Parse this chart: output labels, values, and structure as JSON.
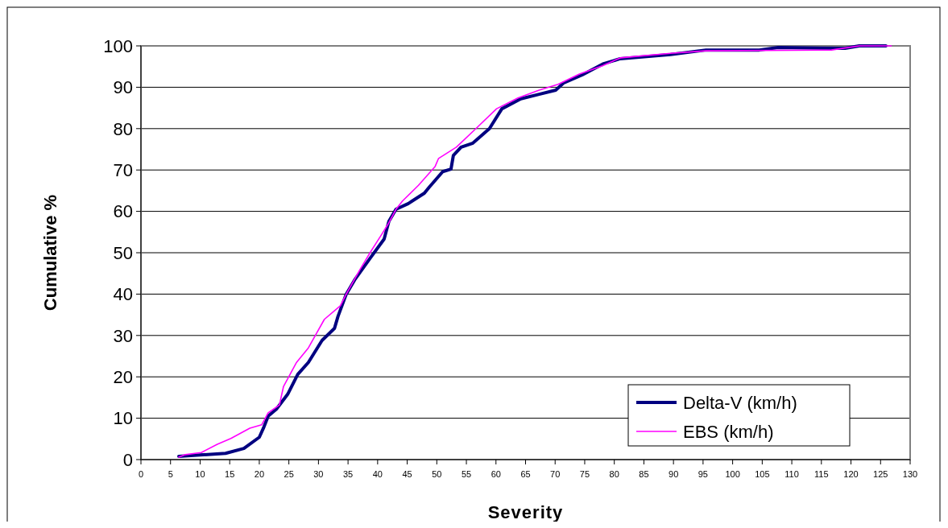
{
  "chart_data": {
    "type": "line",
    "xlabel": "Severity",
    "ylabel": "Cumulative %",
    "xlim": [
      0,
      130
    ],
    "xticks": [
      0,
      5,
      10,
      15,
      20,
      25,
      30,
      35,
      40,
      45,
      50,
      55,
      60,
      65,
      70,
      75,
      80,
      85,
      90,
      95,
      100,
      105,
      110,
      115,
      120,
      125,
      130
    ],
    "ylim": [
      0,
      100
    ],
    "yticks": [
      0,
      10,
      20,
      30,
      40,
      50,
      60,
      70,
      80,
      90,
      100
    ],
    "grid": "y",
    "legend": "bottom right",
    "marker": "none",
    "line_style": "solid",
    "series": [
      {
        "name": "Delta-V (km/h)",
        "color": "#000080",
        "x": [
          6.4,
          14.3,
          17.4,
          20,
          20.7,
          21.5,
          22.9,
          24.8,
          26.5,
          28.3,
          30.6,
          32.7,
          33.3,
          34.7,
          36.1,
          38.8,
          41.1,
          41.9,
          43.1,
          45.2,
          47.9,
          48.7,
          51,
          52.4,
          52.8,
          54.1,
          56.1,
          58.9,
          61,
          64.2,
          67.3,
          70.1,
          71.4,
          74.6,
          78.2,
          81,
          89.5,
          95.5,
          104.5,
          107.7,
          119,
          121.4,
          125.9
        ],
        "values": [
          0.8,
          1.5,
          2.7,
          5.4,
          7.6,
          10.5,
          12.2,
          15.8,
          20.6,
          23.5,
          28.8,
          31.7,
          34.6,
          40,
          43.4,
          48.8,
          53.3,
          57.6,
          60.5,
          61.9,
          64.4,
          65.8,
          69.6,
          70.2,
          73.5,
          75.5,
          76.5,
          80,
          84.8,
          87.2,
          88.3,
          89.3,
          91,
          93,
          95.7,
          96.9,
          97.9,
          99,
          99,
          99.6,
          99.4,
          100,
          100
        ]
      },
      {
        "name": "EBS (km/h)",
        "color": "#ff00ff",
        "x": [
          6.4,
          7.5,
          10.2,
          12.9,
          15.2,
          18.4,
          20.4,
          21.5,
          23.4,
          24.1,
          26.3,
          28.3,
          31,
          33.7,
          34.7,
          37,
          38.8,
          40.5,
          41.8,
          43.1,
          44.2,
          46.9,
          49.7,
          50.3,
          53.3,
          56.9,
          60.1,
          63.7,
          67.3,
          70.5,
          74.1,
          78,
          81,
          89.5,
          95.5,
          116.7,
          121.4,
          126.8
        ],
        "values": [
          0.6,
          1.2,
          1.7,
          3.7,
          5.1,
          7.6,
          8.4,
          11.3,
          13.2,
          17.7,
          23.5,
          27,
          33.9,
          37.2,
          40,
          45.9,
          50.2,
          54,
          57,
          60.5,
          62.5,
          66.3,
          70.8,
          72.8,
          75.5,
          80.4,
          84.8,
          87.4,
          89.3,
          90.7,
          93.2,
          95.2,
          97.1,
          98.2,
          98.8,
          99,
          100,
          100
        ]
      }
    ]
  }
}
